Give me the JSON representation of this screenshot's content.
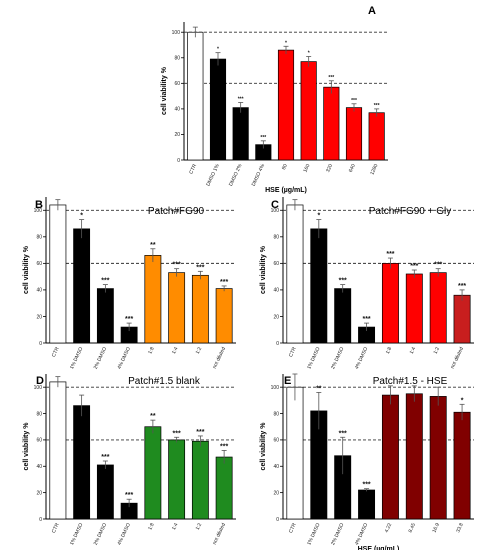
{
  "chart_data": [
    {
      "panel": "A",
      "type": "bar",
      "categories": [
        "CTR",
        "DMSO 1%",
        "DMSO 2%",
        "DMSO 4%",
        "80",
        "160",
        "320",
        "640",
        "1280"
      ],
      "values": [
        100,
        79,
        41,
        12,
        86,
        77,
        57,
        41,
        37
      ],
      "errors": [
        4,
        5,
        4,
        3,
        3,
        4,
        5,
        3,
        3
      ],
      "stars": [
        "",
        "*",
        "***",
        "***",
        "*",
        "*",
        "***",
        "***",
        "***"
      ],
      "colors": [
        "#ffffff",
        "#000000",
        "#000000",
        "#000000",
        "#ff0000",
        "#ff0000",
        "#ff0000",
        "#ff0000",
        "#ff0000"
      ],
      "ylabel": "cell viability %",
      "xlabel": "HSE (µg/mL)",
      "annotation": "",
      "yticks": [
        0,
        20,
        40,
        60,
        80,
        100
      ],
      "ylim": [
        0,
        108
      ],
      "ref_lines": [
        100,
        60
      ],
      "grid": false
    },
    {
      "panel": "B",
      "type": "bar",
      "categories": [
        "CTR",
        "1% DMSO",
        "2% DMSO",
        "4% DMSO",
        "1:8",
        "1:4",
        "1:2",
        "not diluted"
      ],
      "values": [
        104,
        86,
        41,
        12,
        66,
        53,
        51,
        41
      ],
      "errors": [
        4,
        7,
        3,
        3,
        5,
        3,
        3,
        2
      ],
      "stars": [
        "",
        "*",
        "***",
        "***",
        "**",
        "***",
        "***",
        "***"
      ],
      "colors": [
        "#ffffff",
        "#000000",
        "#000000",
        "#000000",
        "#ff8c00",
        "#ff8c00",
        "#ff8c00",
        "#ff8c00"
      ],
      "ylabel": "cell viability %",
      "xlabel": "",
      "annotation": "Patch#FG90",
      "yticks": [
        0,
        20,
        40,
        60,
        80,
        100
      ],
      "ylim": [
        0,
        110
      ],
      "ref_lines": [
        100,
        60
      ],
      "grid": false
    },
    {
      "panel": "C",
      "type": "bar",
      "categories": [
        "CTR",
        "1% DMSO",
        "2% DMSO",
        "4% DMSO",
        "1:8",
        "1:4",
        "1:2",
        "not diluted"
      ],
      "values": [
        104,
        86,
        41,
        12,
        60,
        52,
        53,
        36
      ],
      "errors": [
        4,
        7,
        3,
        3,
        4,
        3,
        3,
        4
      ],
      "stars": [
        "",
        "*",
        "***",
        "***",
        "***",
        "***",
        "***",
        "***"
      ],
      "colors": [
        "#ffffff",
        "#000000",
        "#000000",
        "#000000",
        "#ff0000",
        "#ff0000",
        "#ff0000",
        "#c81e1e"
      ],
      "ylabel": "cell viability %",
      "xlabel": "",
      "annotation": "Patch#FG90 + Gly",
      "yticks": [
        0,
        20,
        40,
        60,
        80,
        100
      ],
      "ylim": [
        0,
        110
      ],
      "ref_lines": [
        100,
        60
      ],
      "grid": false
    },
    {
      "panel": "D",
      "type": "bar",
      "categories": [
        "CTR",
        "1% DMSO",
        "2% DMSO",
        "4% DMSO",
        "1:8",
        "1:4",
        "1:2",
        "not diluted"
      ],
      "values": [
        104,
        86,
        41,
        12,
        70,
        60,
        59,
        47
      ],
      "errors": [
        4,
        8,
        3,
        3,
        5,
        2,
        4,
        5
      ],
      "stars": [
        "",
        "",
        "***",
        "***",
        "**",
        "***",
        "***",
        "***"
      ],
      "colors": [
        "#ffffff",
        "#000000",
        "#000000",
        "#000000",
        "#1f8b1f",
        "#1f8b1f",
        "#1f8b1f",
        "#1f8b1f"
      ],
      "ylabel": "cell viability %",
      "xlabel": "",
      "annotation": "Patch#1.5 blank",
      "yticks": [
        0,
        20,
        40,
        60,
        80,
        100
      ],
      "ylim": [
        0,
        110
      ],
      "ref_lines": [
        100,
        60
      ],
      "grid": false
    },
    {
      "panel": "E",
      "type": "bar",
      "categories": [
        "CTR",
        "1% DMSO",
        "2% DMSO",
        "4% DMSO",
        "4.22",
        "8.45",
        "16.9",
        "33.8"
      ],
      "values": [
        100,
        82,
        48,
        22,
        94,
        95,
        93,
        81
      ],
      "errors": [
        10,
        14,
        14,
        1,
        7,
        6,
        7,
        6
      ],
      "stars": [
        "",
        "**",
        "***",
        "***",
        "",
        "",
        "",
        "*"
      ],
      "colors": [
        "#ffffff",
        "#000000",
        "#000000",
        "#000000",
        "#800000",
        "#800000",
        "#800000",
        "#800000"
      ],
      "ylabel": "cell viability %",
      "xlabel": "HSE (µg/mL)",
      "annotation": "Patch#1.5 - HSE",
      "yticks": [
        0,
        20,
        40,
        60,
        80,
        100
      ],
      "ylim": [
        0,
        110
      ],
      "ref_lines": [
        100,
        60
      ],
      "grid": false
    }
  ]
}
